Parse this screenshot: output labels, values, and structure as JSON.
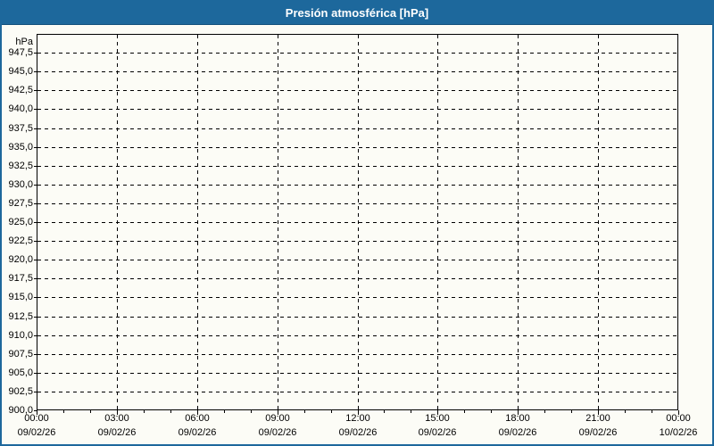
{
  "titlebar": {
    "title": "Presión atmosférica [hPa]"
  },
  "colors": {
    "titlebar_bg": "#1d689c",
    "titlebar_border": "#11507c",
    "titlebar_text": "#ffffff",
    "outer_border": "#1d689c",
    "background": "#fcfcf6",
    "axis": "#000000",
    "grid": "#000000",
    "label_text": "#000000"
  },
  "chart_data": {
    "type": "line",
    "title": "Presión atmosférica [hPa]",
    "unit_label": "hPa",
    "ylabel": "hPa",
    "ylim": [
      900,
      950
    ],
    "ytick_step": 2.5,
    "grid_style": "dashed",
    "legend": "none",
    "series": [],
    "yticks": [
      {
        "value": 947.5,
        "label": "947,5"
      },
      {
        "value": 945.0,
        "label": "945,0"
      },
      {
        "value": 942.5,
        "label": "942,5"
      },
      {
        "value": 940.0,
        "label": "940,0"
      },
      {
        "value": 937.5,
        "label": "937,5"
      },
      {
        "value": 935.0,
        "label": "935,0"
      },
      {
        "value": 932.5,
        "label": "932,5"
      },
      {
        "value": 930.0,
        "label": "930,0"
      },
      {
        "value": 927.5,
        "label": "927,5"
      },
      {
        "value": 925.0,
        "label": "925,0"
      },
      {
        "value": 922.5,
        "label": "922,5"
      },
      {
        "value": 920.0,
        "label": "920,0"
      },
      {
        "value": 917.5,
        "label": "917,5"
      },
      {
        "value": 915.0,
        "label": "915,0"
      },
      {
        "value": 912.5,
        "label": "912,5"
      },
      {
        "value": 910.0,
        "label": "910,0"
      },
      {
        "value": 907.5,
        "label": "907,5"
      },
      {
        "value": 905.0,
        "label": "905,0"
      },
      {
        "value": 902.5,
        "label": "902,5"
      },
      {
        "value": 900.0,
        "label": "900,0"
      }
    ],
    "x_range_hours": [
      0,
      24
    ],
    "x_minor_tick_every_hours": 1,
    "xticks": [
      {
        "hour": 0,
        "time": "00:00",
        "date": "09/02/26"
      },
      {
        "hour": 3,
        "time": "03:00",
        "date": "09/02/26"
      },
      {
        "hour": 6,
        "time": "06:00",
        "date": "09/02/26"
      },
      {
        "hour": 9,
        "time": "09:00",
        "date": "09/02/26"
      },
      {
        "hour": 12,
        "time": "12:00",
        "date": "09/02/26"
      },
      {
        "hour": 15,
        "time": "15:00",
        "date": "09/02/26"
      },
      {
        "hour": 18,
        "time": "18:00",
        "date": "09/02/26"
      },
      {
        "hour": 21,
        "time": "21:00",
        "date": "09/02/26"
      },
      {
        "hour": 24,
        "time": "00:00",
        "date": "10/02/26"
      }
    ]
  }
}
